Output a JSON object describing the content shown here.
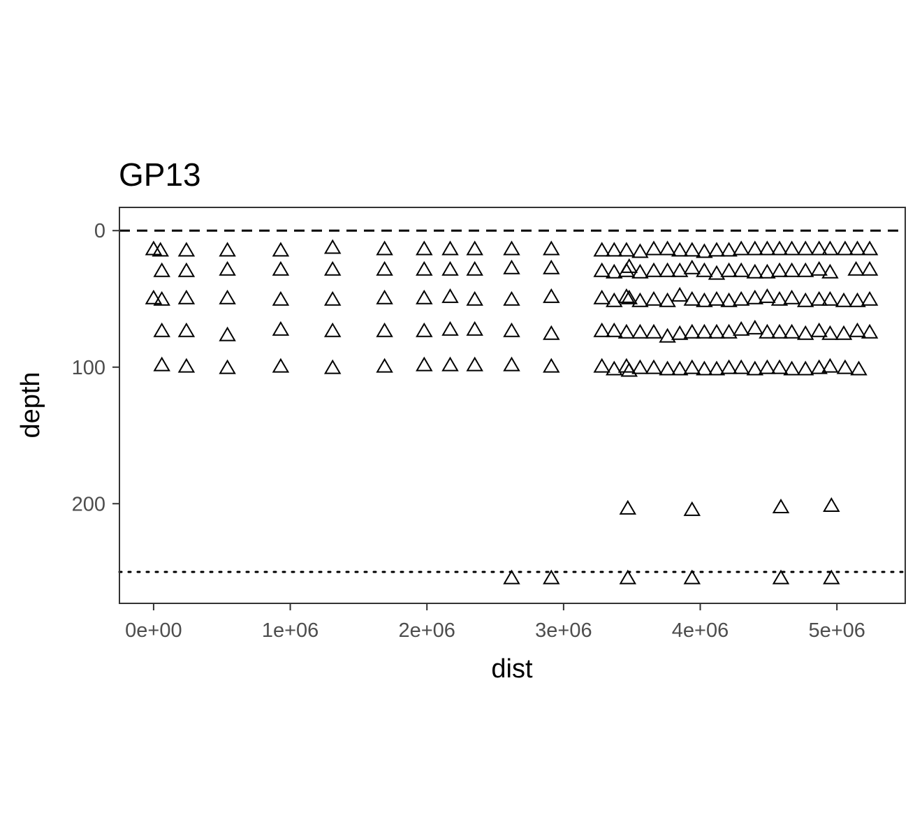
{
  "chart_data": {
    "type": "scatter",
    "title": "GP13",
    "xlabel": "dist",
    "ylabel": "depth",
    "xlim": [
      -250000,
      5500000
    ],
    "ylim": [
      -17,
      273
    ],
    "y_reversed": true,
    "grid": false,
    "marker": "open-triangle",
    "x_ticks": [
      0,
      1000000,
      2000000,
      3000000,
      4000000,
      5000000
    ],
    "x_tick_labels": [
      "0e+00",
      "1e+06",
      "2e+06",
      "3e+06",
      "4e+06",
      "5e+06"
    ],
    "y_ticks": [
      0,
      100,
      200
    ],
    "y_tick_labels": [
      "0",
      "100",
      "200"
    ],
    "reference_lines": [
      {
        "y": 0,
        "style": "dashed"
      },
      {
        "y": 250,
        "style": "dotted"
      }
    ],
    "points": [
      [
        0,
        14
      ],
      [
        50000,
        15
      ],
      [
        240000,
        15
      ],
      [
        540000,
        15
      ],
      [
        930000,
        15
      ],
      [
        1310000,
        13
      ],
      [
        1690000,
        14
      ],
      [
        1980000,
        14
      ],
      [
        2170000,
        14
      ],
      [
        2350000,
        14
      ],
      [
        2620000,
        14
      ],
      [
        2910000,
        14
      ],
      [
        60000,
        30
      ],
      [
        240000,
        30
      ],
      [
        540000,
        29
      ],
      [
        930000,
        29
      ],
      [
        1310000,
        29
      ],
      [
        1690000,
        29
      ],
      [
        1980000,
        29
      ],
      [
        2170000,
        29
      ],
      [
        2350000,
        29
      ],
      [
        2620000,
        28
      ],
      [
        2910000,
        28
      ],
      [
        0,
        50
      ],
      [
        60000,
        51
      ],
      [
        240000,
        50
      ],
      [
        540000,
        50
      ],
      [
        930000,
        51
      ],
      [
        1310000,
        51
      ],
      [
        1690000,
        50
      ],
      [
        1980000,
        50
      ],
      [
        2170000,
        49
      ],
      [
        2350000,
        51
      ],
      [
        2620000,
        51
      ],
      [
        2910000,
        49
      ],
      [
        60000,
        74
      ],
      [
        240000,
        74
      ],
      [
        540000,
        77
      ],
      [
        930000,
        73
      ],
      [
        1310000,
        74
      ],
      [
        1690000,
        74
      ],
      [
        1980000,
        74
      ],
      [
        2170000,
        73
      ],
      [
        2350000,
        73
      ],
      [
        2620000,
        74
      ],
      [
        2910000,
        76
      ],
      [
        60000,
        99
      ],
      [
        240000,
        100
      ],
      [
        540000,
        101
      ],
      [
        930000,
        100
      ],
      [
        1310000,
        101
      ],
      [
        1690000,
        100
      ],
      [
        1980000,
        99
      ],
      [
        2170000,
        99
      ],
      [
        2350000,
        99
      ],
      [
        2620000,
        99
      ],
      [
        2910000,
        100
      ],
      [
        3280000,
        15
      ],
      [
        3370000,
        15
      ],
      [
        3460000,
        15
      ],
      [
        3560000,
        16
      ],
      [
        3660000,
        14
      ],
      [
        3760000,
        14
      ],
      [
        3850000,
        15
      ],
      [
        3940000,
        15
      ],
      [
        4030000,
        16
      ],
      [
        4120000,
        15
      ],
      [
        4210000,
        15
      ],
      [
        4300000,
        14
      ],
      [
        4400000,
        14
      ],
      [
        4490000,
        14
      ],
      [
        4580000,
        14
      ],
      [
        4670000,
        14
      ],
      [
        4770000,
        14
      ],
      [
        4870000,
        14
      ],
      [
        4950000,
        14
      ],
      [
        5060000,
        14
      ],
      [
        5150000,
        14
      ],
      [
        5240000,
        14
      ],
      [
        3280000,
        30
      ],
      [
        3370000,
        31
      ],
      [
        3460000,
        30
      ],
      [
        3480000,
        27
      ],
      [
        3560000,
        31
      ],
      [
        3660000,
        30
      ],
      [
        3760000,
        30
      ],
      [
        3850000,
        30
      ],
      [
        3940000,
        28
      ],
      [
        4030000,
        30
      ],
      [
        4120000,
        32
      ],
      [
        4210000,
        30
      ],
      [
        4300000,
        30
      ],
      [
        4400000,
        31
      ],
      [
        4490000,
        31
      ],
      [
        4580000,
        30
      ],
      [
        4670000,
        30
      ],
      [
        4770000,
        30
      ],
      [
        4870000,
        29
      ],
      [
        4950000,
        31
      ],
      [
        5140000,
        29
      ],
      [
        5240000,
        29
      ],
      [
        3280000,
        50
      ],
      [
        3370000,
        52
      ],
      [
        3460000,
        49
      ],
      [
        3480000,
        50
      ],
      [
        3560000,
        52
      ],
      [
        3660000,
        51
      ],
      [
        3760000,
        52
      ],
      [
        3850000,
        48
      ],
      [
        3940000,
        51
      ],
      [
        4030000,
        52
      ],
      [
        4120000,
        51
      ],
      [
        4210000,
        52
      ],
      [
        4300000,
        51
      ],
      [
        4400000,
        50
      ],
      [
        4490000,
        49
      ],
      [
        4580000,
        51
      ],
      [
        4670000,
        50
      ],
      [
        4770000,
        52
      ],
      [
        4870000,
        51
      ],
      [
        4950000,
        51
      ],
      [
        5050000,
        52
      ],
      [
        5150000,
        52
      ],
      [
        5240000,
        51
      ],
      [
        3280000,
        74
      ],
      [
        3370000,
        74
      ],
      [
        3460000,
        75
      ],
      [
        3560000,
        75
      ],
      [
        3660000,
        75
      ],
      [
        3760000,
        78
      ],
      [
        3850000,
        76
      ],
      [
        3940000,
        75
      ],
      [
        4030000,
        75
      ],
      [
        4120000,
        75
      ],
      [
        4210000,
        75
      ],
      [
        4300000,
        73
      ],
      [
        4400000,
        72
      ],
      [
        4490000,
        75
      ],
      [
        4580000,
        75
      ],
      [
        4670000,
        75
      ],
      [
        4770000,
        76
      ],
      [
        4870000,
        74
      ],
      [
        4950000,
        76
      ],
      [
        5050000,
        76
      ],
      [
        5150000,
        74
      ],
      [
        5240000,
        75
      ],
      [
        3280000,
        100
      ],
      [
        3370000,
        102
      ],
      [
        3460000,
        100
      ],
      [
        3480000,
        103
      ],
      [
        3560000,
        101
      ],
      [
        3660000,
        101
      ],
      [
        3760000,
        102
      ],
      [
        3850000,
        102
      ],
      [
        3940000,
        101
      ],
      [
        4030000,
        102
      ],
      [
        4120000,
        102
      ],
      [
        4210000,
        101
      ],
      [
        4300000,
        101
      ],
      [
        4400000,
        102
      ],
      [
        4490000,
        101
      ],
      [
        4580000,
        101
      ],
      [
        4670000,
        102
      ],
      [
        4770000,
        102
      ],
      [
        4870000,
        101
      ],
      [
        4950000,
        100
      ],
      [
        5060000,
        101
      ],
      [
        5160000,
        102
      ],
      [
        3470000,
        204
      ],
      [
        3940000,
        205
      ],
      [
        4590000,
        203
      ],
      [
        4960000,
        202
      ],
      [
        2620000,
        255
      ],
      [
        2910000,
        255
      ],
      [
        3470000,
        255
      ],
      [
        3940000,
        255
      ],
      [
        4590000,
        255
      ],
      [
        4960000,
        255
      ]
    ]
  }
}
